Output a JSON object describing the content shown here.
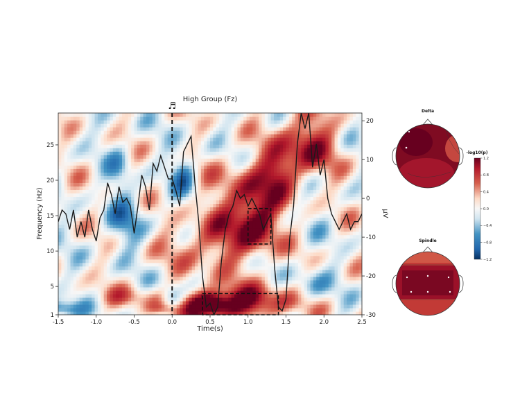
{
  "chart_data": {
    "type": "heatmap",
    "title": "High Group (Fz)",
    "stimulus_marker": "♬",
    "xlabel": "Time(s)",
    "ylabel": "Frequency (Hz)",
    "y2label": "μV",
    "xlim": [
      -1.5,
      2.5
    ],
    "ylim": [
      1,
      29.5
    ],
    "y2lim": [
      -30,
      22
    ],
    "xticks": [
      "-1.5",
      "-1.0",
      "-0.5",
      "0.0",
      "0.5",
      "1.0",
      "1.5",
      "2.0",
      "2.5"
    ],
    "yticks": [
      "1",
      "5",
      "10",
      "15",
      "20",
      "25"
    ],
    "y2ticks": [
      "-30",
      "-20",
      "-10",
      "0",
      "10",
      "20"
    ],
    "colormap": "RdBu_r",
    "onset_line_x": 0.0,
    "regions_of_interest": [
      {
        "name": "delta-window",
        "t0": 0.4,
        "t1": 1.4,
        "f0": 1,
        "f1": 4
      },
      {
        "name": "spindle-window",
        "t0": 1.0,
        "t1": 1.3,
        "f0": 11,
        "f1": 16
      }
    ],
    "erp_series": {
      "name": "ERP",
      "x": [
        -1.5,
        -1.45,
        -1.4,
        -1.35,
        -1.3,
        -1.25,
        -1.2,
        -1.15,
        -1.1,
        -1.05,
        -1.0,
        -0.95,
        -0.9,
        -0.85,
        -0.8,
        -0.75,
        -0.7,
        -0.65,
        -0.6,
        -0.55,
        -0.5,
        -0.45,
        -0.4,
        -0.35,
        -0.3,
        -0.25,
        -0.2,
        -0.15,
        -0.1,
        -0.05,
        0.0,
        0.05,
        0.1,
        0.15,
        0.2,
        0.25,
        0.3,
        0.35,
        0.4,
        0.45,
        0.5,
        0.55,
        0.6,
        0.65,
        0.7,
        0.75,
        0.8,
        0.85,
        0.9,
        0.95,
        1.0,
        1.05,
        1.1,
        1.15,
        1.2,
        1.25,
        1.3,
        1.35,
        1.4,
        1.45,
        1.5,
        1.55,
        1.6,
        1.65,
        1.7,
        1.75,
        1.8,
        1.85,
        1.9,
        1.95,
        2.0,
        2.05,
        2.1,
        2.15,
        2.2,
        2.25,
        2.3,
        2.35,
        2.4,
        2.45,
        2.5
      ],
      "y": [
        -6,
        -3,
        -4,
        -8,
        -3,
        -10,
        -6,
        -10,
        -3,
        -8,
        -11,
        -5,
        -3,
        4,
        1,
        -4,
        3,
        -1,
        0,
        -2,
        -9,
        -2,
        6,
        3,
        -3,
        9,
        7,
        11,
        8,
        5,
        5,
        2,
        -2,
        12,
        14,
        16,
        4,
        -6,
        -20,
        -28,
        -27,
        -30,
        -28,
        -16,
        -8,
        -4,
        -2,
        2,
        0,
        1,
        -2,
        0,
        -2,
        -4,
        -8,
        -6,
        -4,
        -18,
        -28,
        -29,
        -26,
        -10,
        -2,
        14,
        22,
        18,
        22,
        8,
        14,
        6,
        10,
        0,
        -4,
        -6,
        -8,
        -6,
        -4,
        -8,
        -6,
        -6,
        -4
      ]
    },
    "topomaps": [
      {
        "title": "Delta"
      },
      {
        "title": "Spindle"
      }
    ],
    "colorbar": {
      "label": "-log10(p)",
      "ticks": [
        "1.2",
        "0.8",
        "0.4",
        "0.0",
        "−0.4",
        "−0.8",
        "−1.2"
      ],
      "range": [
        -1.2,
        1.2
      ]
    }
  }
}
